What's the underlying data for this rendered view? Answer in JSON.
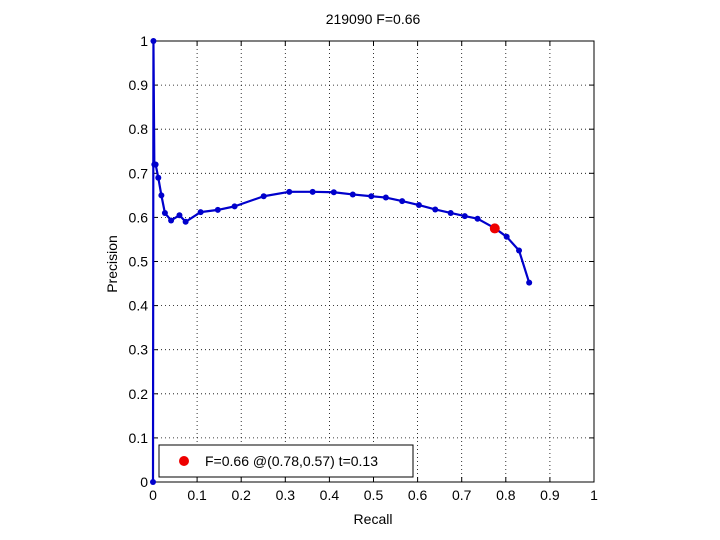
{
  "chart_data": {
    "type": "line",
    "title": "219090 F=0.66",
    "xlabel": "Recall",
    "ylabel": "Precision",
    "xlim": [
      0,
      1
    ],
    "ylim": [
      0,
      1
    ],
    "xticks": [
      "0",
      "0.1",
      "0.2",
      "0.3",
      "0.4",
      "0.5",
      "0.6",
      "0.7",
      "0.8",
      "0.9",
      "1"
    ],
    "yticks": [
      "0",
      "0.1",
      "0.2",
      "0.3",
      "0.4",
      "0.5",
      "0.6",
      "0.7",
      "0.8",
      "0.9",
      "1"
    ],
    "grid": true,
    "series": [
      {
        "color": "#0000cc",
        "x": [
          0,
          0.001,
          0.003,
          0.006,
          0.012,
          0.019,
          0.027,
          0.041,
          0.06,
          0.074,
          0.108,
          0.147,
          0.185,
          0.251,
          0.309,
          0.362,
          0.41,
          0.453,
          0.495,
          0.528,
          0.565,
          0.603,
          0.64,
          0.675,
          0.707,
          0.736,
          0.776,
          0.802,
          0.83,
          0.853
        ],
        "y": [
          0,
          1.0,
          0.72,
          0.72,
          0.69,
          0.65,
          0.61,
          0.593,
          0.605,
          0.59,
          0.612,
          0.617,
          0.625,
          0.648,
          0.658,
          0.658,
          0.657,
          0.652,
          0.648,
          0.645,
          0.637,
          0.628,
          0.618,
          0.61,
          0.603,
          0.597,
          0.575,
          0.556,
          0.525,
          0.452
        ]
      }
    ],
    "best_point": {
      "x": 0.775,
      "y": 0.575,
      "color": "#ee0000"
    },
    "legend": {
      "label": "F=0.66 @(0.78,0.57) t=0.13",
      "position": "bottom-left"
    }
  }
}
